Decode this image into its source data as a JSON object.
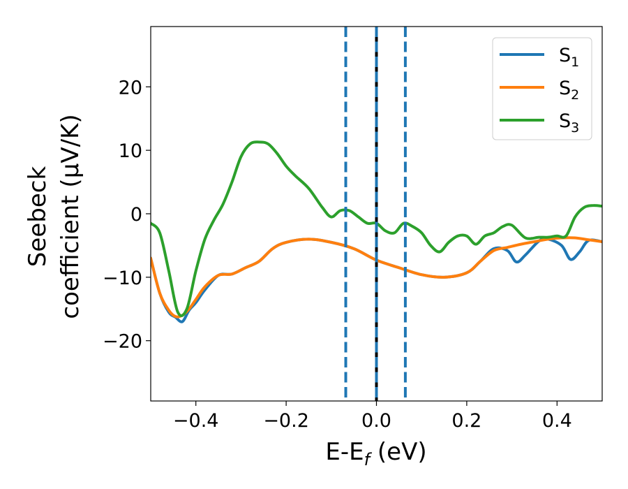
{
  "chart_data": {
    "type": "line",
    "xlabel": "E-E",
    "xlabel_sub": "f",
    "xlabel_unit": " (eV)",
    "ylabel_line1": "Seebeck",
    "ylabel_line2": "coefficient  (μV/K)",
    "xlim": [
      -0.5,
      0.5
    ],
    "ylim": [
      -29.5,
      29.5
    ],
    "x_ticks": [
      -0.4,
      -0.2,
      0.0,
      0.2,
      0.4
    ],
    "x_tick_labels": [
      "−0.4",
      "−0.2",
      "0.0",
      "0.2",
      "0.4"
    ],
    "y_ticks": [
      -20,
      -10,
      0,
      10,
      20
    ],
    "y_tick_labels": [
      "−20",
      "−10",
      "0",
      "10",
      "20"
    ],
    "legend_position": "top-right",
    "series": [
      {
        "name": "S",
        "subscript": "1",
        "color": "#1f77b4",
        "x": [
          -0.5,
          -0.48,
          -0.46,
          -0.445,
          -0.43,
          -0.415,
          -0.4,
          -0.38,
          -0.35,
          -0.32,
          -0.29,
          -0.26,
          -0.23,
          -0.2,
          -0.15,
          -0.1,
          -0.05,
          0.0,
          0.05,
          0.1,
          0.15,
          0.2,
          0.23,
          0.26,
          0.29,
          0.31,
          0.33,
          0.36,
          0.38,
          0.41,
          0.43,
          0.45,
          0.47,
          0.5
        ],
        "values": [
          -7,
          -12.5,
          -15.5,
          -16.3,
          -17,
          -15.2,
          -14,
          -12,
          -9.7,
          -9.5,
          -8.5,
          -7.5,
          -5.5,
          -4.5,
          -4,
          -4.5,
          -5.5,
          -7.3,
          -8.5,
          -9.6,
          -10,
          -9.3,
          -7.5,
          -5.5,
          -5.8,
          -7.6,
          -6.5,
          -4.3,
          -4,
          -5,
          -7.2,
          -6,
          -4.2,
          -4.4
        ]
      },
      {
        "name": "S",
        "subscript": "2",
        "color": "#ff7f0e",
        "x": [
          -0.5,
          -0.48,
          -0.46,
          -0.445,
          -0.43,
          -0.415,
          -0.4,
          -0.38,
          -0.35,
          -0.32,
          -0.29,
          -0.26,
          -0.23,
          -0.2,
          -0.15,
          -0.1,
          -0.05,
          0.0,
          0.05,
          0.1,
          0.15,
          0.2,
          0.23,
          0.26,
          0.29,
          0.32,
          0.35,
          0.38,
          0.41,
          0.44,
          0.47,
          0.5
        ],
        "values": [
          -7,
          -12.5,
          -15.2,
          -16.2,
          -16,
          -15,
          -13.5,
          -11.5,
          -9.7,
          -9.5,
          -8.5,
          -7.5,
          -5.5,
          -4.5,
          -4,
          -4.5,
          -5.5,
          -7.3,
          -8.5,
          -9.6,
          -10,
          -9.3,
          -7.5,
          -5.8,
          -5.3,
          -4.8,
          -4.4,
          -4,
          -3.8,
          -3.8,
          -4.1,
          -4.4
        ]
      },
      {
        "name": "S",
        "subscript": "3",
        "color": "#2ca02c",
        "x": [
          -0.5,
          -0.48,
          -0.46,
          -0.44,
          -0.42,
          -0.4,
          -0.38,
          -0.36,
          -0.34,
          -0.32,
          -0.3,
          -0.28,
          -0.26,
          -0.24,
          -0.22,
          -0.2,
          -0.18,
          -0.15,
          -0.12,
          -0.1,
          -0.08,
          -0.06,
          -0.04,
          -0.02,
          0.0,
          0.02,
          0.04,
          0.06,
          0.08,
          0.1,
          0.12,
          0.14,
          0.16,
          0.18,
          0.2,
          0.22,
          0.24,
          0.26,
          0.28,
          0.3,
          0.33,
          0.36,
          0.38,
          0.4,
          0.42,
          0.44,
          0.46,
          0.48,
          0.5
        ],
        "values": [
          -1.5,
          -3,
          -9,
          -15.5,
          -15,
          -9,
          -4,
          -1,
          1.5,
          5,
          9,
          11,
          11.3,
          11,
          9.5,
          7.5,
          6,
          4,
          1,
          -0.5,
          0.5,
          0.5,
          -0.5,
          -1.5,
          -1.5,
          -2.7,
          -3,
          -1.5,
          -2,
          -3,
          -5,
          -6,
          -4.5,
          -3.5,
          -3.5,
          -4.8,
          -3.5,
          -3,
          -2,
          -1.8,
          -3.8,
          -3.7,
          -3.7,
          -3.5,
          -3.5,
          -0.5,
          1,
          1.3,
          1.2
        ]
      }
    ],
    "vlines": [
      {
        "x": -0.068,
        "style": "dashed",
        "color": "#1f77b4"
      },
      {
        "x": 0.0,
        "style": "solid",
        "color": "#000000"
      },
      {
        "x": 0.0,
        "style": "dashed",
        "color": "#1f77b4"
      },
      {
        "x": 0.064,
        "style": "dashed",
        "color": "#1f77b4"
      }
    ]
  }
}
